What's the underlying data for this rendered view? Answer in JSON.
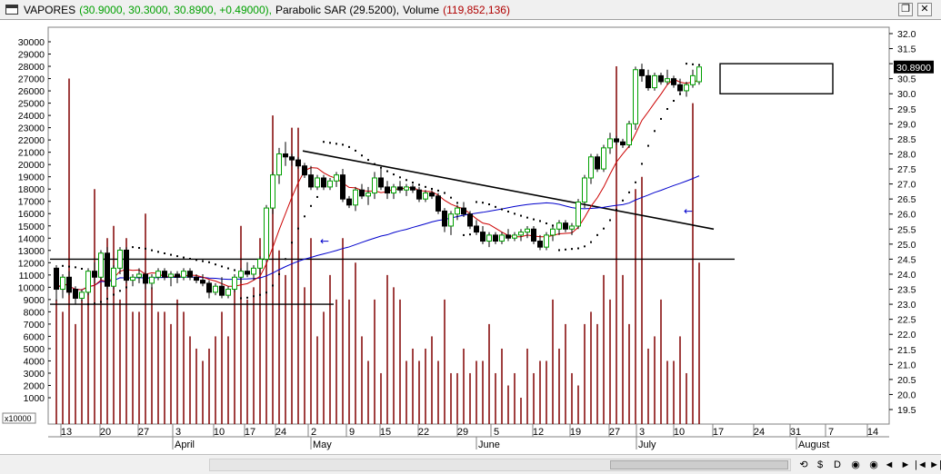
{
  "window": {
    "symbol": "VAPORES",
    "price_text": "(30.9000, 30.3000, 30.8900, +0.49000),",
    "sar_text": "Parabolic SAR (29.5200),",
    "volume_label": "Volume",
    "volume_text": "(119,852,136)",
    "restore_icon": "restore-icon",
    "close_icon": "close-icon"
  },
  "colors": {
    "up_candle": "#00a000",
    "down_candle": "#000000",
    "ma_short": "#cc0000",
    "ma_long": "#0000cc",
    "volume": "#800000",
    "sar": "#000000",
    "background": "#ffffff"
  },
  "toolbar": {
    "buttons": [
      "⟲",
      "$",
      "D",
      "◉",
      "◉",
      "◄",
      "►",
      "|◄",
      "►|"
    ]
  },
  "chart_data": {
    "type": "candlestick",
    "price_axis": {
      "side": "right",
      "min": 19.5,
      "max": 32.0,
      "step": 0.5,
      "ticks": [
        "32.0",
        "31.5",
        "31.0",
        "30.5",
        "30.0",
        "29.5",
        "29.0",
        "28.5",
        "28.0",
        "27.5",
        "27.0",
        "26.5",
        "26.0",
        "25.5",
        "25.0",
        "24.5",
        "24.0",
        "23.5",
        "23.0",
        "22.5",
        "22.0",
        "21.5",
        "21.0",
        "20.5",
        "20.0",
        "19.5"
      ]
    },
    "volume_axis": {
      "side": "left",
      "min": 1000,
      "max": 30000,
      "step": 1000,
      "ticks": [
        "30000",
        "29000",
        "28000",
        "27000",
        "26000",
        "25000",
        "24000",
        "23000",
        "22000",
        "21000",
        "20000",
        "19000",
        "18000",
        "17000",
        "16000",
        "15000",
        "14000",
        "13000",
        "12000",
        "11000",
        "10000",
        "9000",
        "8000",
        "7000",
        "6000",
        "5000",
        "4000",
        "3000",
        "2000",
        "1000"
      ],
      "multiplier_label": "x10000"
    },
    "last_price_label": "30.8900",
    "date_ticks": [
      "13",
      "20",
      "27",
      "3",
      "10",
      "17",
      "24",
      "2",
      "9",
      "15",
      "22",
      "29",
      "5",
      "12",
      "19",
      "27",
      "3",
      "10",
      "17",
      "24",
      "31",
      "7",
      "14"
    ],
    "month_labels": [
      "April",
      "May",
      "June",
      "July",
      "August"
    ],
    "candles": [
      [
        24.2,
        24.3,
        23.1,
        23.5
      ],
      [
        23.5,
        24.0,
        23.2,
        23.9
      ],
      [
        23.9,
        24.1,
        23.3,
        23.4
      ],
      [
        23.5,
        23.6,
        23.0,
        23.2
      ],
      [
        23.2,
        23.5,
        23.1,
        23.4
      ],
      [
        23.4,
        24.2,
        23.3,
        24.1
      ],
      [
        24.1,
        24.4,
        23.7,
        23.9
      ],
      [
        23.9,
        24.8,
        23.8,
        24.7
      ],
      [
        24.7,
        24.9,
        23.5,
        23.6
      ],
      [
        23.6,
        24.3,
        23.5,
        24.2
      ],
      [
        24.2,
        24.9,
        24.0,
        24.8
      ],
      [
        24.8,
        24.9,
        23.7,
        23.8
      ],
      [
        23.8,
        24.0,
        23.6,
        23.9
      ],
      [
        23.9,
        24.2,
        23.7,
        24.0
      ],
      [
        24.0,
        24.1,
        23.5,
        23.7
      ],
      [
        23.7,
        24.0,
        23.5,
        23.9
      ],
      [
        23.9,
        24.2,
        23.8,
        24.1
      ],
      [
        24.1,
        24.2,
        23.8,
        23.9
      ],
      [
        23.9,
        24.1,
        23.6,
        24.0
      ],
      [
        24.0,
        24.1,
        23.7,
        23.9
      ],
      [
        23.9,
        24.2,
        23.8,
        24.1
      ],
      [
        24.1,
        24.2,
        23.8,
        23.9
      ],
      [
        23.9,
        24.0,
        23.7,
        23.8
      ],
      [
        23.8,
        24.0,
        23.6,
        23.7
      ],
      [
        23.7,
        23.8,
        23.2,
        23.4
      ],
      [
        23.4,
        23.7,
        23.3,
        23.6
      ],
      [
        23.6,
        23.9,
        23.2,
        23.3
      ],
      [
        23.3,
        23.6,
        23.2,
        23.5
      ],
      [
        23.5,
        24.0,
        23.4,
        23.9
      ],
      [
        23.9,
        24.2,
        23.7,
        24.1
      ],
      [
        24.1,
        24.4,
        23.9,
        24.0
      ],
      [
        24.0,
        24.3,
        23.8,
        24.2
      ],
      [
        24.2,
        24.6,
        24.0,
        24.5
      ],
      [
        24.5,
        26.3,
        24.4,
        26.2
      ],
      [
        26.2,
        27.4,
        26.0,
        27.3
      ],
      [
        27.3,
        28.2,
        27.0,
        28.0
      ],
      [
        28.0,
        28.4,
        27.6,
        27.9
      ],
      [
        27.9,
        28.0,
        27.6,
        27.8
      ],
      [
        27.8,
        27.9,
        27.5,
        27.6
      ],
      [
        27.6,
        27.7,
        27.2,
        27.3
      ],
      [
        27.3,
        27.6,
        26.8,
        26.9
      ],
      [
        26.9,
        27.3,
        26.8,
        27.2
      ],
      [
        27.2,
        27.3,
        26.8,
        26.9
      ],
      [
        26.9,
        27.2,
        26.8,
        27.1
      ],
      [
        27.1,
        27.4,
        26.9,
        27.3
      ],
      [
        27.3,
        27.5,
        26.4,
        26.5
      ],
      [
        26.5,
        26.6,
        26.2,
        26.3
      ],
      [
        26.3,
        26.9,
        26.1,
        26.8
      ],
      [
        26.8,
        27.0,
        26.5,
        26.6
      ],
      [
        26.6,
        26.9,
        26.3,
        26.7
      ],
      [
        26.7,
        27.4,
        26.5,
        27.2
      ],
      [
        27.2,
        27.5,
        26.8,
        26.9
      ],
      [
        26.9,
        27.1,
        26.5,
        26.7
      ],
      [
        26.7,
        27.0,
        26.5,
        26.9
      ],
      [
        26.9,
        27.1,
        26.7,
        26.8
      ],
      [
        26.8,
        27.0,
        26.6,
        26.9
      ],
      [
        26.9,
        27.0,
        26.7,
        26.8
      ],
      [
        26.8,
        26.9,
        26.4,
        26.5
      ],
      [
        26.5,
        26.8,
        26.4,
        26.7
      ],
      [
        26.7,
        26.8,
        26.5,
        26.6
      ],
      [
        26.6,
        26.7,
        26.0,
        26.1
      ],
      [
        26.1,
        26.2,
        25.4,
        25.6
      ],
      [
        25.6,
        26.1,
        25.3,
        26.0
      ],
      [
        26.0,
        26.3,
        25.8,
        26.2
      ],
      [
        26.2,
        26.4,
        25.9,
        26.0
      ],
      [
        26.0,
        26.1,
        25.5,
        25.6
      ],
      [
        25.6,
        25.8,
        25.3,
        25.4
      ],
      [
        25.4,
        25.6,
        25.0,
        25.1
      ],
      [
        25.1,
        25.4,
        24.9,
        25.3
      ],
      [
        25.3,
        25.4,
        25.0,
        25.1
      ],
      [
        25.1,
        25.4,
        25.0,
        25.3
      ],
      [
        25.3,
        25.5,
        25.1,
        25.2
      ],
      [
        25.2,
        25.4,
        25.1,
        25.3
      ],
      [
        25.3,
        25.5,
        25.1,
        25.4
      ],
      [
        25.4,
        25.6,
        25.2,
        25.5
      ],
      [
        25.5,
        25.6,
        25.0,
        25.1
      ],
      [
        25.1,
        25.3,
        24.8,
        24.9
      ],
      [
        24.9,
        25.4,
        24.8,
        25.3
      ],
      [
        25.3,
        25.6,
        25.1,
        25.5
      ],
      [
        25.5,
        25.8,
        25.3,
        25.7
      ],
      [
        25.7,
        25.8,
        25.4,
        25.5
      ],
      [
        25.5,
        25.7,
        25.3,
        25.6
      ],
      [
        25.6,
        26.5,
        25.5,
        26.4
      ],
      [
        26.4,
        27.3,
        26.2,
        27.2
      ],
      [
        27.2,
        28.0,
        27.0,
        27.9
      ],
      [
        27.9,
        28.0,
        27.4,
        27.5
      ],
      [
        27.5,
        28.3,
        27.4,
        28.2
      ],
      [
        28.2,
        28.7,
        28.0,
        28.5
      ],
      [
        28.5,
        28.6,
        28.3,
        28.4
      ],
      [
        28.4,
        28.5,
        28.2,
        28.3
      ],
      [
        28.3,
        29.1,
        28.2,
        29.0
      ],
      [
        29.0,
        30.9,
        28.8,
        30.8
      ],
      [
        30.8,
        31.0,
        30.4,
        30.6
      ],
      [
        30.6,
        30.8,
        30.1,
        30.2
      ],
      [
        30.2,
        30.7,
        30.1,
        30.6
      ],
      [
        30.6,
        30.7,
        30.3,
        30.4
      ],
      [
        30.4,
        30.8,
        30.3,
        30.5
      ],
      [
        30.5,
        30.6,
        30.2,
        30.3
      ],
      [
        30.3,
        30.5,
        30.0,
        30.1
      ],
      [
        30.1,
        30.4,
        29.9,
        30.3
      ],
      [
        30.3,
        30.8,
        30.2,
        30.6
      ],
      [
        30.4,
        30.9,
        30.3,
        30.89
      ]
    ],
    "volume": [
      9,
      8,
      27,
      7,
      9,
      10,
      18,
      11,
      14,
      15,
      9,
      14,
      8,
      8,
      16,
      10,
      8,
      8,
      7,
      9,
      8,
      6,
      5,
      4,
      5,
      6,
      8,
      6,
      10,
      15,
      9,
      10,
      14,
      12,
      24,
      13,
      11,
      23,
      23,
      10,
      14,
      6,
      8,
      11,
      9,
      14,
      9,
      12,
      6,
      4,
      9,
      3,
      11,
      10,
      9,
      4,
      5,
      4,
      5,
      6,
      4,
      9,
      3,
      3,
      5,
      3,
      4,
      4,
      7,
      3,
      5,
      2,
      3,
      1,
      5,
      3,
      4,
      4,
      9,
      5,
      7,
      3,
      2,
      7,
      8,
      7,
      11,
      9,
      28,
      11,
      7,
      18,
      19,
      5,
      6,
      9,
      4,
      4,
      6,
      3,
      25,
      12
    ],
    "overlays": [
      {
        "name": "Parabolic SAR",
        "type": "dots"
      },
      {
        "name": "short moving average",
        "type": "line"
      },
      {
        "name": "long moving average",
        "type": "line"
      },
      {
        "name": "trendline-upper",
        "type": "line"
      },
      {
        "name": "support-line-upper",
        "type": "line"
      },
      {
        "name": "support-line-lower",
        "type": "line"
      },
      {
        "name": "consolidation-box",
        "type": "rect"
      }
    ]
  }
}
